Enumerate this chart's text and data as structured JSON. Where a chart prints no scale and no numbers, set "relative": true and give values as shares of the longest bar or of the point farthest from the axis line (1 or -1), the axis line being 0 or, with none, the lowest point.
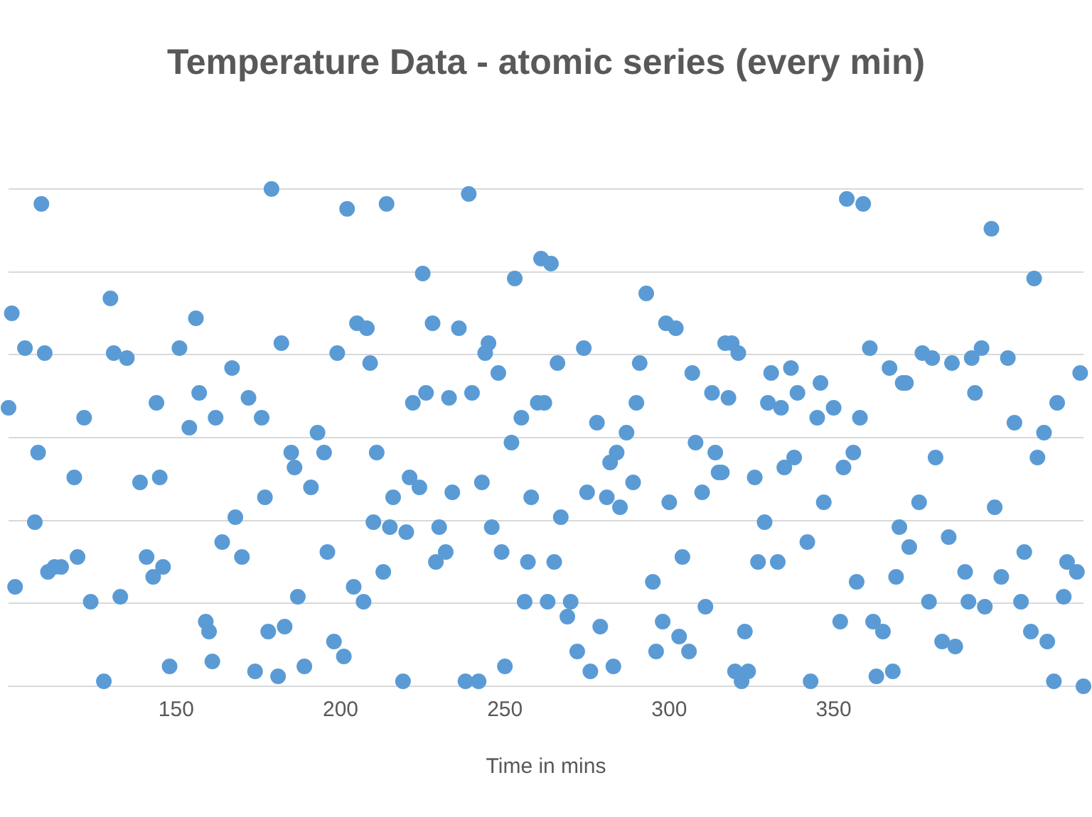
{
  "chart_data": {
    "type": "scatter",
    "title": "Temperature Data - atomic series (every min)",
    "xlabel": "Time in mins",
    "relative": true,
    "xlim": [
      99,
      426
    ],
    "xticks": [
      150,
      200,
      250,
      300,
      350
    ],
    "grid": "y",
    "marker": "circle",
    "legend": false,
    "series": [
      {
        "color": "#5b9bd5",
        "x": [
          109,
          100,
          104,
          99,
          110,
          108,
          107,
          111,
          101,
          113,
          115,
          120,
          119,
          122,
          124,
          130,
          131,
          133,
          135,
          139,
          141,
          145,
          143,
          146,
          148,
          128,
          144,
          151,
          179,
          202,
          156,
          182,
          199,
          205,
          157,
          167,
          162,
          172,
          176,
          154,
          185,
          186,
          193,
          195,
          191,
          177,
          168,
          164,
          170,
          196,
          204,
          187,
          159,
          160,
          161,
          178,
          183,
          174,
          181,
          189,
          198,
          201,
          214,
          239,
          225,
          253,
          261,
          208,
          209,
          228,
          236,
          245,
          244,
          248,
          222,
          226,
          233,
          240,
          255,
          260,
          211,
          252,
          221,
          224,
          216,
          234,
          243,
          258,
          210,
          215,
          220,
          230,
          246,
          249,
          229,
          232,
          213,
          257,
          207,
          256,
          250,
          219,
          238,
          242,
          264,
          293,
          299,
          302,
          274,
          266,
          291,
          317,
          307,
          313,
          290,
          262,
          278,
          287,
          284,
          282,
          308,
          314,
          315,
          275,
          281,
          285,
          289,
          300,
          310,
          267,
          265,
          304,
          295,
          263,
          270,
          269,
          279,
          311,
          298,
          303,
          306,
          296,
          272,
          276,
          283,
          354,
          359,
          319,
          321,
          361,
          367,
          371,
          318,
          331,
          337,
          330,
          334,
          339,
          346,
          345,
          350,
          358,
          316,
          326,
          335,
          338,
          353,
          356,
          347,
          329,
          342,
          327,
          333,
          370,
          357,
          369,
          352,
          362,
          365,
          323,
          320,
          324,
          322,
          343,
          363,
          368,
          398,
          411,
          377,
          380,
          386,
          392,
          395,
          403,
          425,
          372,
          393,
          418,
          405,
          414,
          412,
          381,
          376,
          399,
          373,
          385,
          408,
          390,
          401,
          421,
          424,
          420,
          379,
          391,
          396,
          407,
          410,
          415,
          383,
          387,
          417,
          426
        ],
        "values": [
          0.97,
          0.75,
          0.68,
          0.56,
          0.67,
          0.47,
          0.33,
          0.23,
          0.2,
          0.24,
          0.24,
          0.26,
          0.42,
          0.54,
          0.17,
          0.78,
          0.67,
          0.18,
          0.66,
          0.41,
          0.26,
          0.42,
          0.22,
          0.24,
          0.04,
          0.01,
          0.57,
          0.68,
          1,
          0.96,
          0.74,
          0.69,
          0.67,
          0.73,
          0.59,
          0.64,
          0.54,
          0.58,
          0.54,
          0.52,
          0.47,
          0.44,
          0.51,
          0.47,
          0.4,
          0.38,
          0.34,
          0.29,
          0.26,
          0.27,
          0.2,
          0.18,
          0.13,
          0.11,
          0.05,
          0.11,
          0.12,
          0.03,
          0.02,
          0.04,
          0.09,
          0.06,
          0.97,
          0.99,
          0.83,
          0.82,
          0.86,
          0.72,
          0.65,
          0.73,
          0.72,
          0.69,
          0.67,
          0.63,
          0.57,
          0.59,
          0.58,
          0.59,
          0.54,
          0.57,
          0.47,
          0.49,
          0.42,
          0.4,
          0.38,
          0.39,
          0.41,
          0.38,
          0.33,
          0.32,
          0.31,
          0.32,
          0.32,
          0.27,
          0.25,
          0.27,
          0.23,
          0.25,
          0.17,
          0.17,
          0.04,
          0.01,
          0.01,
          0.01,
          0.85,
          0.79,
          0.73,
          0.72,
          0.68,
          0.65,
          0.65,
          0.69,
          0.63,
          0.59,
          0.57,
          0.57,
          0.53,
          0.51,
          0.47,
          0.45,
          0.49,
          0.47,
          0.43,
          0.39,
          0.38,
          0.36,
          0.41,
          0.37,
          0.39,
          0.34,
          0.25,
          0.26,
          0.21,
          0.17,
          0.17,
          0.14,
          0.12,
          0.16,
          0.13,
          0.1,
          0.07,
          0.07,
          0.07,
          0.03,
          0.04,
          0.98,
          0.97,
          0.69,
          0.67,
          0.68,
          0.64,
          0.61,
          0.58,
          0.63,
          0.64,
          0.57,
          0.56,
          0.59,
          0.61,
          0.54,
          0.56,
          0.54,
          0.43,
          0.42,
          0.44,
          0.46,
          0.44,
          0.47,
          0.37,
          0.33,
          0.29,
          0.25,
          0.25,
          0.32,
          0.21,
          0.22,
          0.13,
          0.13,
          0.11,
          0.11,
          0.03,
          0.03,
          0.01,
          0.01,
          0.02,
          0.03,
          0.92,
          0.82,
          0.67,
          0.66,
          0.65,
          0.66,
          0.68,
          0.66,
          0.63,
          0.61,
          0.59,
          0.57,
          0.53,
          0.51,
          0.46,
          0.46,
          0.37,
          0.36,
          0.28,
          0.3,
          0.27,
          0.23,
          0.22,
          0.25,
          0.23,
          0.18,
          0.17,
          0.17,
          0.16,
          0.17,
          0.11,
          0.09,
          0.09,
          0.08,
          0.01,
          0
        ]
      }
    ]
  }
}
